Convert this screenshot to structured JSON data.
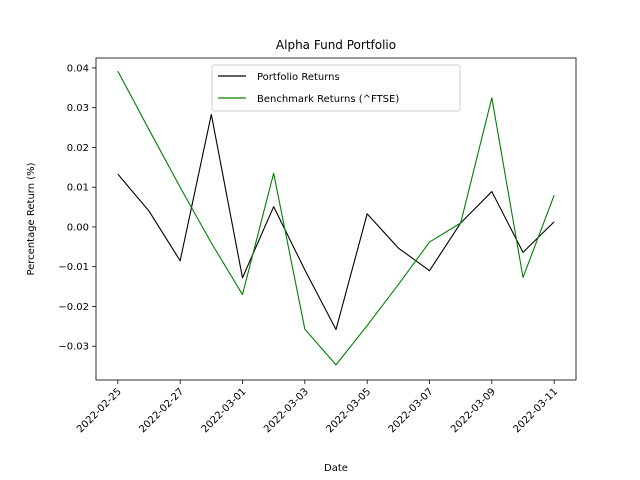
{
  "chart_data": {
    "type": "line",
    "title": "Alpha Fund Portfolio",
    "xlabel": "Date",
    "ylabel": "Percentage Return (%)",
    "x": [
      "2022-02-25",
      "2022-02-26",
      "2022-02-27",
      "2022-02-28",
      "2022-03-01",
      "2022-03-02",
      "2022-03-03",
      "2022-03-04",
      "2022-03-05",
      "2022-03-06",
      "2022-03-07",
      "2022-03-08",
      "2022-03-09",
      "2022-03-10",
      "2022-03-11"
    ],
    "xticks": [
      "2022-02-25",
      "2022-02-27",
      "2022-03-01",
      "2022-03-03",
      "2022-03-05",
      "2022-03-07",
      "2022-03-09",
      "2022-03-11"
    ],
    "yticks": [
      -0.03,
      -0.02,
      -0.01,
      0.0,
      0.01,
      0.02,
      0.03,
      0.04
    ],
    "ytick_labels": [
      "−0.03",
      "−0.02",
      "−0.01",
      "0.00",
      "0.01",
      "0.02",
      "0.03",
      "0.04"
    ],
    "ylim": [
      -0.0385,
      0.0425
    ],
    "xlim": [
      "2022-02-24T07:12",
      "2022-03-11T16:48"
    ],
    "grid": false,
    "legend_position": "top-center",
    "series": [
      {
        "name": "Portfolio Returns",
        "color": "#000000",
        "values": [
          0.0133,
          0.004,
          -0.0085,
          0.0283,
          -0.0128,
          0.0051,
          -0.0108,
          -0.0258,
          0.0033,
          -0.0053,
          -0.011,
          0.001,
          0.0089,
          -0.0064,
          0.0013
        ]
      },
      {
        "name": "Benchmark Returns (^FTSE)",
        "color": "#008000",
        "values": [
          0.0392,
          0.0245,
          0.01,
          -0.004,
          -0.017,
          0.0135,
          -0.0257,
          -0.0347,
          -0.0248,
          -0.0145,
          -0.0038,
          0.001,
          0.0325,
          -0.0127,
          0.008
        ]
      }
    ]
  }
}
